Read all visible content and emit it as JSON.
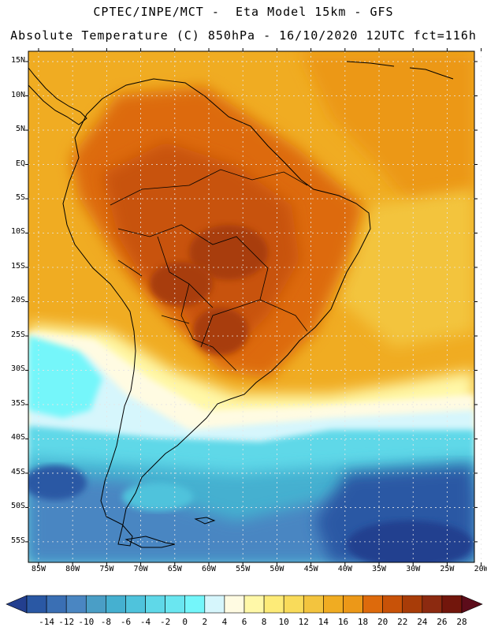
{
  "header": {
    "line1": "CPTEC/INPE/MCT -  Eta Model 15km - GFS",
    "line2": "Absolute Temperature (C) 850hPa - 16/10/2020 12UTC fct=116h"
  },
  "map": {
    "region": "South America",
    "field": "Absolute Temperature (C) 850hPa",
    "lat_ticks": [
      "15N",
      "10N",
      "5N",
      "EQ",
      "5S",
      "10S",
      "15S",
      "20S",
      "25S",
      "30S",
      "35S",
      "40S",
      "45S",
      "50S",
      "55S"
    ],
    "lon_ticks": [
      "85W",
      "80W",
      "75W",
      "70W",
      "65W",
      "60W",
      "55W",
      "50W",
      "45W",
      "40W",
      "35W",
      "30W",
      "25W",
      "20W"
    ],
    "lat_range": [
      -58,
      16.5
    ],
    "lon_range": [
      -86.5,
      -21
    ]
  },
  "colorbar": {
    "labels": [
      "-14",
      "-12",
      "-10",
      "-8",
      "-6",
      "-4",
      "-2",
      "0",
      "2",
      "4",
      "6",
      "8",
      "10",
      "12",
      "14",
      "16",
      "18",
      "20",
      "22",
      "24",
      "26",
      "28"
    ],
    "colors": [
      "#233f8f",
      "#2a58a4",
      "#3a6fb4",
      "#4a86c2",
      "#4a9ec6",
      "#45b0d0",
      "#4fc3dc",
      "#5fd8e8",
      "#6ae6f0",
      "#74f6fa",
      "#d6f6fc",
      "#fffbe2",
      "#fff8a8",
      "#fdeb78",
      "#f9db5a",
      "#f3c43e",
      "#f0ac22",
      "#ec9818",
      "#dd6a0c",
      "#c85208",
      "#a83c08",
      "#8c2a10",
      "#72160c",
      "#5c0c1a"
    ]
  },
  "colors": {
    "coast": "#000000",
    "grid": "#e6e6e6"
  }
}
